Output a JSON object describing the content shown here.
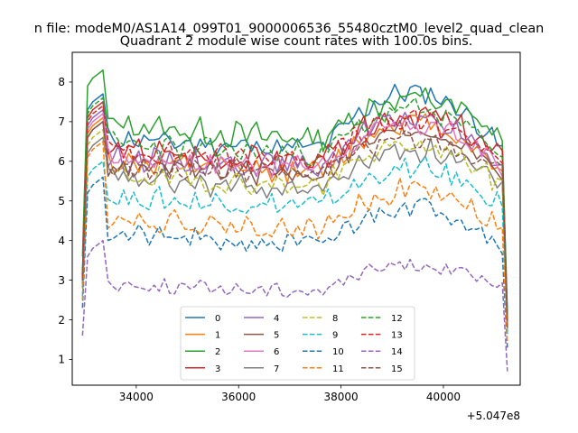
{
  "chart_data": {
    "type": "line",
    "suptitle": "n file: modeM0/AS1A14_099T01_9000006536_55480cztM0_level2_quad_clean",
    "title": "Quadrant 2 module wise count rates with 100.0s bins.",
    "xlabel": "",
    "ylabel": "",
    "xlim": [
      32750,
      41500
    ],
    "ylim": [
      0.35,
      8.75
    ],
    "x_ticks": [
      34000,
      36000,
      38000,
      40000
    ],
    "y_ticks": [
      1,
      2,
      3,
      4,
      5,
      6,
      7,
      8
    ],
    "x_offset_label": "+5.047e8",
    "x_start": 32950,
    "x_step": 100,
    "grid": false,
    "legend": {
      "placement": "bottom-center",
      "columns": 4
    },
    "series": [
      {
        "name": "0",
        "color": "#1f77b4",
        "style": "solid",
        "start": 3.2,
        "end": 2.2,
        "peak": 7.7,
        "plateau": 6.6,
        "mid": 6.35,
        "hump": 7.75,
        "noise": 0.22,
        "seed": 11
      },
      {
        "name": "1",
        "color": "#ff7f0e",
        "style": "solid",
        "start": 3.0,
        "end": 1.9,
        "peak": 7.1,
        "plateau": 6.0,
        "mid": 5.75,
        "hump": 7.0,
        "noise": 0.25,
        "seed": 12
      },
      {
        "name": "2",
        "color": "#2ca02c",
        "style": "solid",
        "start": 3.6,
        "end": 2.0,
        "peak": 8.3,
        "plateau": 7.0,
        "mid": 6.6,
        "hump": 7.6,
        "noise": 0.28,
        "seed": 13
      },
      {
        "name": "3",
        "color": "#d62728",
        "style": "solid",
        "start": 3.1,
        "end": 1.9,
        "peak": 7.5,
        "plateau": 6.3,
        "mid": 6.0,
        "hump": 7.2,
        "noise": 0.28,
        "seed": 14
      },
      {
        "name": "4",
        "color": "#9467bd",
        "style": "solid",
        "start": 3.0,
        "end": 1.8,
        "peak": 7.3,
        "plateau": 6.1,
        "mid": 5.9,
        "hump": 7.1,
        "noise": 0.25,
        "seed": 15
      },
      {
        "name": "5",
        "color": "#8c564b",
        "style": "solid",
        "start": 2.9,
        "end": 1.8,
        "peak": 7.0,
        "plateau": 5.9,
        "mid": 5.7,
        "hump": 6.8,
        "noise": 0.25,
        "seed": 16
      },
      {
        "name": "6",
        "color": "#e377c2",
        "style": "solid",
        "start": 3.0,
        "end": 1.8,
        "peak": 7.2,
        "plateau": 6.1,
        "mid": 5.9,
        "hump": 6.9,
        "noise": 0.25,
        "seed": 17
      },
      {
        "name": "7",
        "color": "#7f7f7f",
        "style": "solid",
        "start": 2.8,
        "end": 1.7,
        "peak": 6.6,
        "plateau": 5.6,
        "mid": 5.3,
        "hump": 6.3,
        "noise": 0.25,
        "seed": 18
      },
      {
        "name": "8",
        "color": "#bcbd22",
        "style": "dashed",
        "start": 2.8,
        "end": 1.7,
        "peak": 6.8,
        "plateau": 5.7,
        "mid": 5.4,
        "hump": 6.4,
        "noise": 0.25,
        "seed": 19
      },
      {
        "name": "9",
        "color": "#17becf",
        "style": "dashed",
        "start": 2.6,
        "end": 1.6,
        "peak": 6.0,
        "plateau": 5.1,
        "mid": 4.9,
        "hump": 5.8,
        "noise": 0.25,
        "seed": 20
      },
      {
        "name": "10",
        "color": "#1f77b4",
        "style": "dashed",
        "start": 2.3,
        "end": 1.3,
        "peak": 5.6,
        "plateau": 4.2,
        "mid": 3.9,
        "hump": 4.9,
        "noise": 0.22,
        "seed": 21
      },
      {
        "name": "11",
        "color": "#ff7f0e",
        "style": "dashed",
        "start": 2.5,
        "end": 1.4,
        "peak": 6.5,
        "plateau": 4.6,
        "mid": 4.3,
        "hump": 5.3,
        "noise": 0.25,
        "seed": 22
      },
      {
        "name": "12",
        "color": "#2ca02c",
        "style": "dashed",
        "start": 3.2,
        "end": 2.0,
        "peak": 7.6,
        "plateau": 6.5,
        "mid": 6.2,
        "hump": 7.3,
        "noise": 0.25,
        "seed": 23
      },
      {
        "name": "13",
        "color": "#d62728",
        "style": "dashed",
        "start": 3.1,
        "end": 1.9,
        "peak": 7.4,
        "plateau": 6.3,
        "mid": 6.1,
        "hump": 7.0,
        "noise": 0.25,
        "seed": 24
      },
      {
        "name": "14",
        "color": "#9467bd",
        "style": "dashed",
        "start": 1.6,
        "end": 0.7,
        "peak": 4.0,
        "plateau": 2.9,
        "mid": 2.75,
        "hump": 3.4,
        "noise": 0.15,
        "seed": 25
      },
      {
        "name": "15",
        "color": "#8c564b",
        "style": "dashed",
        "start": 3.0,
        "end": 1.8,
        "peak": 7.0,
        "plateau": 5.9,
        "mid": 5.7,
        "hump": 6.6,
        "noise": 0.25,
        "seed": 26
      }
    ]
  }
}
